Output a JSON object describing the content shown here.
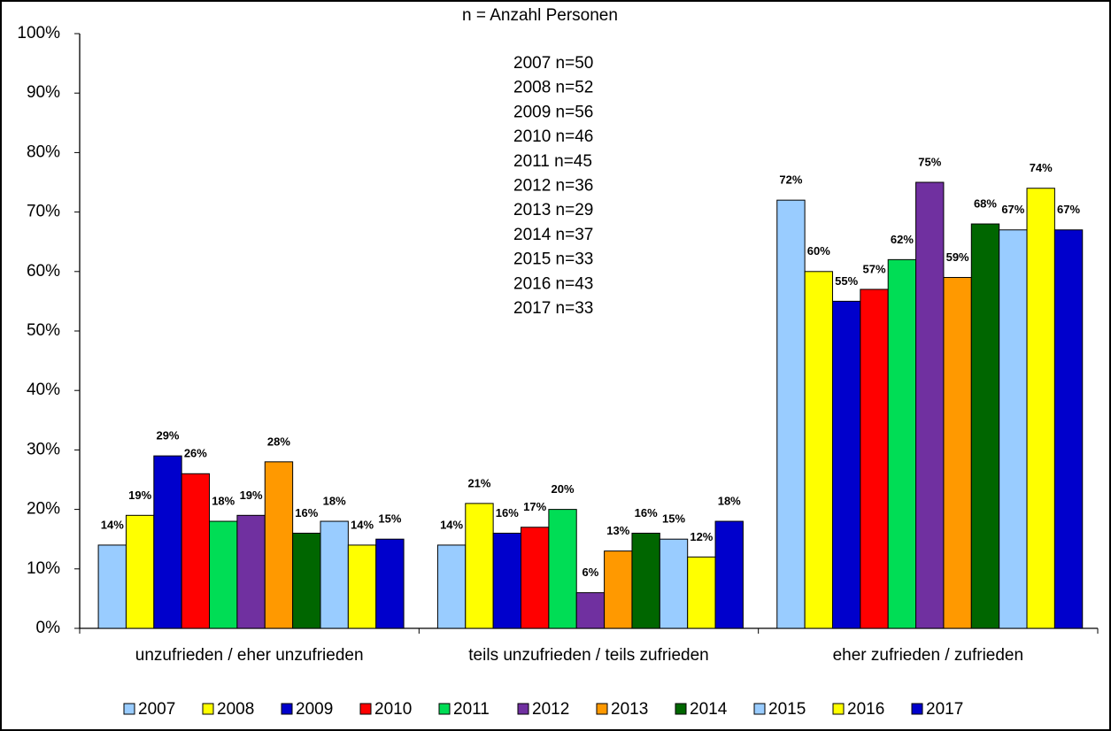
{
  "chart_data": {
    "type": "bar",
    "title": "n = Anzahl Personen",
    "annotations": [
      "2007 n=50",
      "2008 n=52",
      "2009 n=56",
      "2010 n=46",
      "2011 n=45",
      "2012 n=36",
      "2013 n=29",
      "2014 n=37",
      "2015 n=33",
      "2016 n=43",
      "2017 n=33"
    ],
    "categories": [
      "unzufrieden / eher unzufrieden",
      "teils unzufrieden / teils zufrieden",
      "eher zufrieden / zufrieden"
    ],
    "series": [
      {
        "name": "2007",
        "color": "#99ccff",
        "values": [
          14,
          14,
          72
        ],
        "value_labels": [
          "14%",
          "14%",
          "72%"
        ]
      },
      {
        "name": "2008",
        "color": "#ffff00",
        "values": [
          19,
          21,
          60
        ],
        "value_labels": [
          "19%",
          "21%",
          "60%"
        ]
      },
      {
        "name": "2009",
        "color": "#0000cc",
        "values": [
          29,
          16,
          55
        ],
        "value_labels": [
          "29%",
          "16%",
          "55%"
        ]
      },
      {
        "name": "2010",
        "color": "#ff0000",
        "values": [
          26,
          17,
          57
        ],
        "value_labels": [
          "26%",
          "17%",
          "57%"
        ]
      },
      {
        "name": "2011",
        "color": "#00dd55",
        "values": [
          18,
          20,
          62
        ],
        "value_labels": [
          "18%",
          "20%",
          "62%"
        ]
      },
      {
        "name": "2012",
        "color": "#7030a0",
        "values": [
          19,
          6,
          75
        ],
        "value_labels": [
          "19%",
          "6%",
          "75%"
        ]
      },
      {
        "name": "2013",
        "color": "#ff9900",
        "values": [
          28,
          13,
          59
        ],
        "value_labels": [
          "28%",
          "13%",
          "59%"
        ]
      },
      {
        "name": "2014",
        "color": "#006600",
        "values": [
          16,
          16,
          68
        ],
        "value_labels": [
          "16%",
          "16%",
          "68%"
        ]
      },
      {
        "name": "2015",
        "color": "#99ccff",
        "values": [
          18,
          15,
          67
        ],
        "value_labels": [
          "18%",
          "15%",
          "67%"
        ]
      },
      {
        "name": "2016",
        "color": "#ffff00",
        "values": [
          14,
          12,
          74
        ],
        "value_labels": [
          "14%",
          "12%",
          "74%"
        ]
      },
      {
        "name": "2017",
        "color": "#0000cc",
        "values": [
          15,
          18,
          67
        ],
        "value_labels": [
          "15%",
          "18%",
          "67%"
        ]
      }
    ],
    "ylim": [
      0,
      100
    ],
    "yticks": [
      {
        "value": 0,
        "label": "0%"
      },
      {
        "value": 10,
        "label": "10%"
      },
      {
        "value": 20,
        "label": "20%"
      },
      {
        "value": 30,
        "label": "30%"
      },
      {
        "value": 40,
        "label": "40%"
      },
      {
        "value": 50,
        "label": "50%"
      },
      {
        "value": 60,
        "label": "60%"
      },
      {
        "value": 70,
        "label": "70%"
      },
      {
        "value": 80,
        "label": "80%"
      },
      {
        "value": 90,
        "label": "90%"
      },
      {
        "value": 100,
        "label": "100%"
      }
    ],
    "grid": false,
    "legend": "bottom"
  }
}
